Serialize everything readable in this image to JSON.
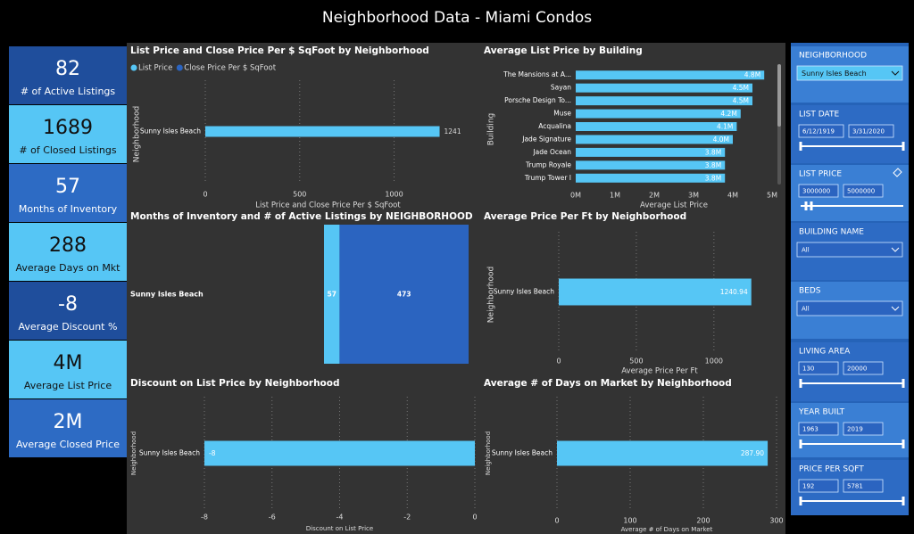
{
  "header": {
    "title": "Neighborhood Data - Miami Condos"
  },
  "kpis": [
    {
      "value": 82,
      "label": "# of Active Listings"
    },
    {
      "value": 1689,
      "label": "# of Closed Listings"
    },
    {
      "value": 57,
      "label": "Months of Inventory"
    },
    {
      "value": 288,
      "label": "Average Days on Mkt"
    },
    {
      "value": -8,
      "label": "Average Discount %"
    },
    {
      "value": "4M",
      "label": "Average List Price"
    },
    {
      "value": "2M",
      "label": "Average Closed Price"
    }
  ],
  "filters": [
    {
      "title": "NEIGHBORHOOD",
      "dropdown": "Sunny Isles Beach"
    },
    {
      "title": "LIST DATE",
      "inputs": [
        "6/12/1919",
        "3/31/2020"
      ]
    },
    {
      "title": "LIST PRICE",
      "inputs": [
        "3000000",
        "5000000"
      ]
    },
    {
      "title": "BUILDING NAME",
      "dropdown": "All"
    },
    {
      "title": "BEDS",
      "dropdown": "All"
    },
    {
      "title": "LIVING AREA",
      "inputs": [
        "130",
        "20000"
      ]
    },
    {
      "title": "YEAR BUILT",
      "inputs": [
        "1963",
        "2019"
      ]
    },
    {
      "title": "PRICE PER SQFT",
      "inputs": [
        "192",
        "5781"
      ]
    }
  ],
  "chart_data": [
    {
      "type": "bar",
      "orientation": "horizontal",
      "title": "List Price and Close Price Per $ SqFoot by Neighborhood",
      "categories": [
        "Sunny Isles Beach"
      ],
      "series": [
        {
          "name": "List Price",
          "color": "#56c6f5",
          "values": [
            1241
          ]
        },
        {
          "name": "Close Price Per $ SqFoot",
          "color": "#2b64c0",
          "values": [
            null
          ]
        }
      ],
      "xlim": [
        0,
        1300
      ],
      "xticks": [
        0,
        500,
        1000
      ],
      "grid": true,
      "xlabel": "List Price and Close Price Per $ SqFoot",
      "ylabel": "Neighborhood"
    },
    {
      "type": "bar",
      "orientation": "horizontal",
      "title": "Average List Price by Building",
      "categories": [
        "The Mansions at A...",
        "Sayan",
        "Porsche Design To...",
        "Muse",
        "Acqualina",
        "Jade Signature",
        "Jade Ocean",
        "Trump Royale",
        "Trump Tower I"
      ],
      "values": [
        4800000,
        4500000,
        4500000,
        4200000,
        4100000,
        4000000,
        3800000,
        3800000,
        3800000
      ],
      "value_labels": [
        "4.8M",
        "4.5M",
        "4.5M",
        "4.2M",
        "4.1M",
        "4.0M",
        "3.8M",
        "3.8M",
        "3.8M"
      ],
      "color": "#56c6f5",
      "xlim": [
        0,
        5000000
      ],
      "xticks": [
        {
          "value": 0,
          "label": "0M"
        },
        {
          "value": 1000000,
          "label": "1M"
        },
        {
          "value": 2000000,
          "label": "2M"
        },
        {
          "value": 3000000,
          "label": "3M"
        },
        {
          "value": 4000000,
          "label": "4M"
        },
        {
          "value": 5000000,
          "label": "5M"
        }
      ],
      "grid": false,
      "xlabel": "Average List Price",
      "ylabel": "Building"
    },
    {
      "type": "bar",
      "orientation": "horizontal",
      "stacked": true,
      "title": "Months of Inventory and # of Active Listings by NEIGHBORHOOD",
      "categories": [
        "Sunny Isles Beach"
      ],
      "series": [
        {
          "color": "#56c6f5",
          "values": [
            57
          ]
        },
        {
          "color": "#2b64c0",
          "values": [
            473
          ]
        }
      ]
    },
    {
      "type": "bar",
      "orientation": "horizontal",
      "title": "Average Price Per Ft by Neighborhood",
      "categories": [
        "Sunny Isles Beach"
      ],
      "values": [
        1240.94
      ],
      "color": "#56c6f5",
      "xlim": [
        0,
        1300
      ],
      "xticks": [
        0,
        500,
        1000
      ],
      "grid": true,
      "xlabel": "Average Price Per Ft",
      "ylabel": "Neighborhood"
    },
    {
      "type": "bar",
      "orientation": "horizontal",
      "title": "Discount on List Price by Neighborhood",
      "categories": [
        "Sunny Isles Beach"
      ],
      "values": [
        -8
      ],
      "color": "#56c6f5",
      "xlim": [
        -8,
        0
      ],
      "xticks": [
        -8,
        -6,
        -4,
        -2,
        0
      ],
      "grid": true,
      "xlabel": "Discount on List Price",
      "ylabel": "Neighborhood"
    },
    {
      "type": "bar",
      "orientation": "horizontal",
      "title": "Average # of Days on Market by Neighborhood",
      "categories": [
        "Sunny Isles Beach"
      ],
      "values": [
        287.9
      ],
      "value_labels": [
        "287.90"
      ],
      "color": "#56c6f5",
      "xlim": [
        0,
        300
      ],
      "xticks": [
        0,
        100,
        200,
        300
      ],
      "grid": true,
      "xlabel": "Average # of Days on Market",
      "ylabel": "Neighborhood"
    }
  ]
}
